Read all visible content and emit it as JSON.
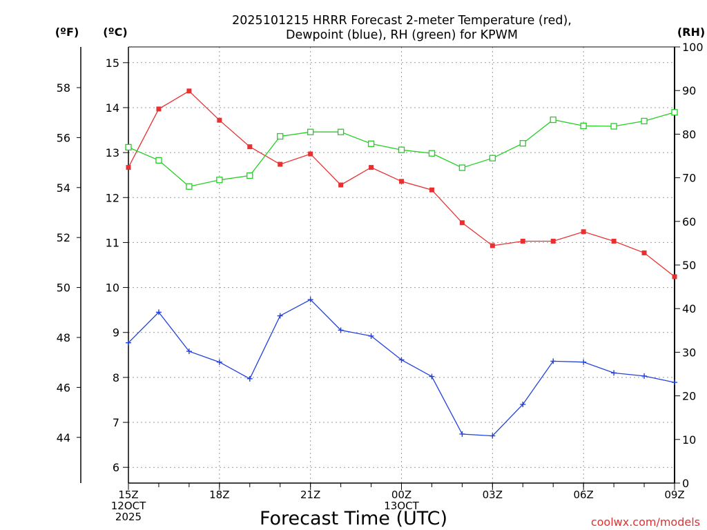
{
  "chart_data": {
    "type": "line",
    "title": [
      "2025101215 HRRR Forecast 2-meter Temperature (red),",
      "Dewpoint (blue), RH (green) for KPWM"
    ],
    "xlabel": "Forecast Time (UTC)",
    "credit": "coolwx.com/models",
    "x_hours": [
      15,
      16,
      17,
      18,
      19,
      20,
      21,
      22,
      23,
      24,
      25,
      26,
      27,
      28,
      29,
      30,
      31,
      32,
      33
    ],
    "x_ticks": [
      {
        "hour": 15,
        "lines": [
          "15Z",
          "12OCT",
          "2025"
        ]
      },
      {
        "hour": 18,
        "lines": [
          "18Z"
        ]
      },
      {
        "hour": 21,
        "lines": [
          "21Z"
        ]
      },
      {
        "hour": 24,
        "lines": [
          "00Z",
          "13OCT"
        ]
      },
      {
        "hour": 27,
        "lines": [
          "03Z"
        ]
      },
      {
        "hour": 30,
        "lines": [
          "06Z"
        ]
      },
      {
        "hour": 33,
        "lines": [
          "09Z"
        ]
      }
    ],
    "axes": {
      "celsius": {
        "label": "(ºC)",
        "range": [
          5.65,
          15.35
        ],
        "ticks": [
          6,
          7,
          8,
          9,
          10,
          11,
          12,
          13,
          14,
          15
        ]
      },
      "fahrenheit": {
        "label": "(ºF)",
        "range": [
          42.17,
          59.63
        ],
        "ticks": [
          44,
          46,
          48,
          50,
          52,
          54,
          56,
          58
        ]
      },
      "rh": {
        "label": "(RH)",
        "range": [
          0,
          100
        ],
        "ticks": [
          0,
          10,
          20,
          30,
          40,
          50,
          60,
          70,
          80,
          90,
          100
        ]
      }
    },
    "series": [
      {
        "name": "Temperature",
        "axis": "celsius",
        "color": "#e83030",
        "marker": "filled-square",
        "values": [
          12.67,
          13.97,
          14.37,
          13.72,
          13.13,
          12.74,
          12.97,
          12.28,
          12.67,
          12.36,
          12.17,
          11.44,
          10.93,
          11.03,
          11.03,
          11.24,
          11.03,
          10.77,
          10.24
        ]
      },
      {
        "name": "Dewpoint",
        "axis": "celsius",
        "color": "#2040e0",
        "marker": "plus",
        "values": [
          8.77,
          9.45,
          8.58,
          8.34,
          7.97,
          9.37,
          9.73,
          9.05,
          8.92,
          8.39,
          8.02,
          6.74,
          6.7,
          7.4,
          8.36,
          8.34,
          8.1,
          8.03,
          7.89
        ]
      },
      {
        "name": "RH",
        "axis": "rh",
        "color": "#20d020",
        "marker": "open-square",
        "values": [
          77.0,
          74.0,
          68.0,
          69.5,
          70.5,
          79.5,
          80.5,
          80.5,
          77.8,
          76.4,
          75.6,
          72.3,
          74.5,
          77.9,
          83.3,
          81.9,
          81.8,
          83.0,
          85.0
        ]
      }
    ]
  }
}
